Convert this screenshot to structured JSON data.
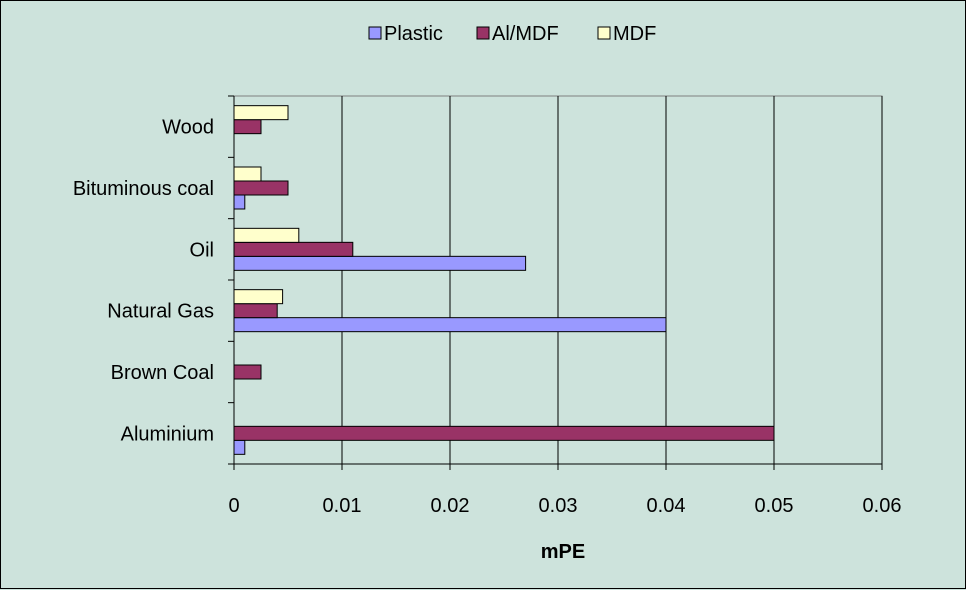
{
  "chart_data": {
    "type": "bar",
    "orientation": "horizontal",
    "categories": [
      "Aluminium",
      "Brown Coal",
      "Natural Gas",
      "Oil",
      "Bituminous coal",
      "Wood"
    ],
    "series": [
      {
        "name": "Plastic",
        "color": "#9999ff",
        "values": [
          0.001,
          0,
          0.04,
          0.027,
          0.001,
          0
        ]
      },
      {
        "name": "Al/MDF",
        "color": "#993366",
        "values": [
          0.05,
          0.0025,
          0.004,
          0.011,
          0.005,
          0.0025
        ]
      },
      {
        "name": "MDF",
        "color": "#ffffcc",
        "values": [
          0,
          0,
          0.0045,
          0.006,
          0.0025,
          0.005
        ]
      }
    ],
    "xlabel": "mPE",
    "ylabel": "",
    "xlim": [
      0,
      0.06
    ],
    "xticks": [
      "0",
      "0.01",
      "0.02",
      "0.03",
      "0.04",
      "0.05",
      "0.06"
    ],
    "grid": "vertical",
    "legend": "top",
    "background": "#cde3dc"
  }
}
